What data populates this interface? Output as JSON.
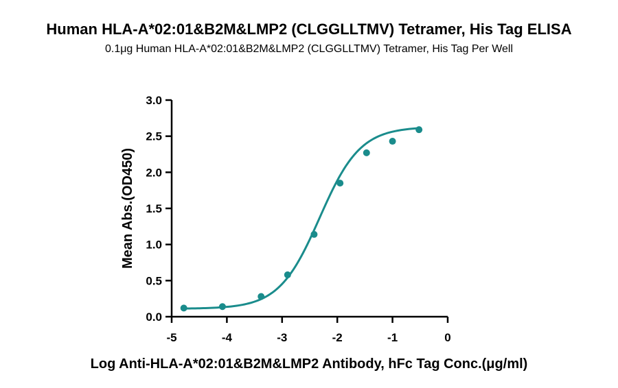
{
  "chart_data": {
    "type": "scatter",
    "title": "Human HLA-A*02:01&B2M&LMP2 (CLGGLLTMV) Tetramer, His Tag ELISA",
    "subtitle": "0.1μg Human HLA-A*02:01&B2M&LMP2 (CLGGLLTMV) Tetramer, His Tag Per Well",
    "xlabel": "Log Anti-HLA-A*02:01&B2M&LMP2 Antibody, hFc Tag Conc.(μg/ml)",
    "ylabel": "Mean Abs.(OD450)",
    "xlim": [
      -5,
      0
    ],
    "ylim": [
      0,
      3.0
    ],
    "xticks": [
      -5,
      -4,
      -3,
      -2,
      -1,
      0
    ],
    "yticks": [
      0.0,
      0.5,
      1.0,
      1.5,
      2.0,
      2.5,
      3.0
    ],
    "xtick_labels": [
      "-5",
      "-4",
      "-3",
      "-2",
      "-1",
      "0"
    ],
    "ytick_labels": [
      "0.0",
      "0.5",
      "1.0",
      "1.5",
      "2.0",
      "2.5",
      "3.0"
    ],
    "grid": false,
    "color": "#1a8c8c",
    "series": [
      {
        "x": [
          -4.78,
          -4.08,
          -3.38,
          -2.9,
          -2.42,
          -1.95,
          -1.47,
          -1.0,
          -0.52
        ],
        "y": [
          0.12,
          0.14,
          0.28,
          0.58,
          1.14,
          1.85,
          2.27,
          2.43,
          2.59
        ],
        "fit": "four-parameter logistic curve"
      }
    ]
  }
}
